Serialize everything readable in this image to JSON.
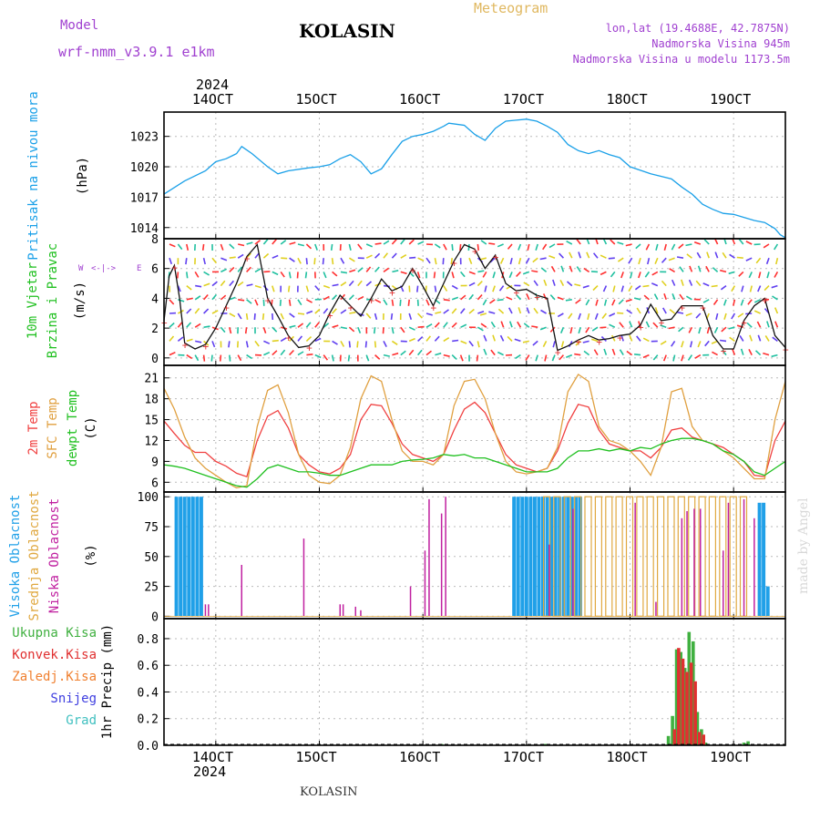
{
  "header": {
    "model_label": "Model",
    "model_name": "wrf-nmm_v3.9.1 e1km",
    "station": "KOLASIN",
    "meteogram": "Meteogram",
    "coords": "lon,lat (19.4688E, 42.7875N)",
    "elevation": "Nadmorska Visina 945m",
    "model_elevation": "Nadmorska Visina u modelu 1173.5m"
  },
  "footer": {
    "station": "KOLASIN",
    "credit": "made by Angel"
  },
  "colors": {
    "pressure": "#1aa0e8",
    "temp2m": "#f04040",
    "sfc": "#e0a040",
    "dewpt": "#20c020",
    "high_cloud": "#20a0e8",
    "mid_cloud": "#e0a840",
    "low_cloud": "#c020a0",
    "precip_total": "#40b040",
    "precip_conv": "#e03030",
    "precip_frozen": "#f08030",
    "snow": "#4040e0",
    "graupel": "#40c0c0"
  },
  "chart_data": [
    {
      "type": "line",
      "panel": "pressure",
      "ylabel_lines": [
        "Pritisak na nivou mora",
        "(hPa)"
      ],
      "yticks": [
        1014,
        1017,
        1020,
        1023
      ],
      "ylim": [
        1012.9,
        1025.4
      ],
      "xlim_days": [
        13.5,
        19.5
      ],
      "top_year": "2024",
      "top_xticks": [
        "14OCT",
        "15OCT",
        "16OCT",
        "17OCT",
        "18OCT",
        "19OCT"
      ],
      "x": [
        13.5,
        13.7,
        13.9,
        14.0,
        14.1,
        14.2,
        14.25,
        14.35,
        14.5,
        14.6,
        14.7,
        14.9,
        15.0,
        15.1,
        15.2,
        15.3,
        15.4,
        15.5,
        15.6,
        15.7,
        15.8,
        15.9,
        16.0,
        16.1,
        16.2,
        16.25,
        16.4,
        16.5,
        16.6,
        16.7,
        16.8,
        16.9,
        17.0,
        17.1,
        17.2,
        17.3,
        17.4,
        17.5,
        17.6,
        17.7,
        17.8,
        17.9,
        18.0,
        18.2,
        18.4,
        18.5,
        18.6,
        18.7,
        18.8,
        18.9,
        19.0,
        19.1,
        19.2,
        19.3,
        19.4,
        19.45,
        19.5
      ],
      "series": [
        {
          "values": [
            1017.3,
            1018.6,
            1019.6,
            1020.5,
            1020.8,
            1021.3,
            1022.0,
            1021.3,
            1020.0,
            1019.3,
            1019.6,
            1019.9,
            1020.0,
            1020.2,
            1020.8,
            1021.2,
            1020.5,
            1019.3,
            1019.8,
            1021.2,
            1022.5,
            1023.0,
            1023.2,
            1023.5,
            1024.0,
            1024.3,
            1024.1,
            1023.2,
            1022.6,
            1023.8,
            1024.5,
            1024.6,
            1024.7,
            1024.5,
            1024.0,
            1023.4,
            1022.2,
            1021.6,
            1021.3,
            1021.6,
            1021.2,
            1020.9,
            1020.0,
            1019.3,
            1018.8,
            1018.0,
            1017.3,
            1016.3,
            1015.8,
            1015.4,
            1015.3,
            1015.0,
            1014.7,
            1014.5,
            1013.9,
            1013.3,
            1013.0
          ]
        }
      ]
    },
    {
      "type": "line",
      "panel": "wind",
      "ylabel_lines": [
        "10m Vjetar",
        "Brzina i Pravac",
        "(m/s)"
      ],
      "yticks": [
        0,
        2,
        4,
        6,
        8
      ],
      "ylim": [
        -0.5,
        8.0
      ],
      "compass": "N S W E",
      "x": [
        13.5,
        13.55,
        13.6,
        13.65,
        13.7,
        13.8,
        13.9,
        14.0,
        14.1,
        14.2,
        14.3,
        14.4,
        14.5,
        14.6,
        14.7,
        14.8,
        14.9,
        15.0,
        15.1,
        15.2,
        15.3,
        15.4,
        15.5,
        15.6,
        15.7,
        15.8,
        15.9,
        16.0,
        16.1,
        16.2,
        16.3,
        16.4,
        16.5,
        16.6,
        16.7,
        16.8,
        16.9,
        17.0,
        17.1,
        17.2,
        17.3,
        17.4,
        17.5,
        17.6,
        17.7,
        17.8,
        17.9,
        18.0,
        18.1,
        18.2,
        18.3,
        18.4,
        18.5,
        18.6,
        18.7,
        18.8,
        18.9,
        19.0,
        19.1,
        19.2,
        19.3,
        19.4,
        19.5
      ],
      "series": [
        {
          "name": "",
          "values": [
            2.5,
            5.5,
            6.2,
            4.0,
            1.0,
            0.6,
            0.9,
            2.0,
            3.5,
            5.0,
            6.8,
            7.6,
            4.0,
            2.8,
            1.5,
            0.7,
            0.8,
            1.5,
            3.0,
            4.2,
            3.5,
            2.8,
            4.0,
            5.3,
            4.5,
            4.8,
            6.0,
            4.8,
            3.5,
            5.0,
            6.5,
            7.6,
            7.3,
            6.0,
            6.9,
            5.0,
            4.5,
            4.6,
            4.2,
            4.0,
            0.5,
            0.8,
            1.2,
            1.5,
            1.2,
            1.3,
            1.5,
            1.6,
            2.2,
            3.6,
            2.5,
            2.6,
            3.5,
            3.5,
            3.5,
            1.5,
            0.6,
            0.6,
            2.5,
            3.5,
            4.0,
            1.5,
            0.7
          ]
        }
      ]
    },
    {
      "type": "line",
      "panel": "temperature",
      "ylabel_lines": [
        "2m Temp",
        "SFC Temp",
        "dewpt Temp",
        "(C)"
      ],
      "yticks": [
        6,
        9,
        12,
        15,
        18,
        21
      ],
      "ylim": [
        4.6,
        22.8
      ],
      "x": [
        13.5,
        13.6,
        13.7,
        13.8,
        13.9,
        14.0,
        14.1,
        14.2,
        14.3,
        14.4,
        14.5,
        14.6,
        14.7,
        14.8,
        14.9,
        15.0,
        15.1,
        15.2,
        15.3,
        15.4,
        15.5,
        15.6,
        15.7,
        15.8,
        15.9,
        16.0,
        16.1,
        16.2,
        16.3,
        16.4,
        16.5,
        16.6,
        16.7,
        16.8,
        16.9,
        17.0,
        17.1,
        17.2,
        17.3,
        17.4,
        17.5,
        17.6,
        17.7,
        17.8,
        17.9,
        18.0,
        18.1,
        18.2,
        18.3,
        18.4,
        18.5,
        18.6,
        18.7,
        18.8,
        18.9,
        19.0,
        19.1,
        19.2,
        19.3,
        19.4,
        19.5
      ],
      "series": [
        {
          "name": "2m Temp",
          "values": [
            14.8,
            13.0,
            11.3,
            10.3,
            10.3,
            9.0,
            8.3,
            7.3,
            6.8,
            12.0,
            15.5,
            16.3,
            13.8,
            10.0,
            8.5,
            7.5,
            7.2,
            8.0,
            10.0,
            15.0,
            17.2,
            17.0,
            14.5,
            11.5,
            10.0,
            9.5,
            9.0,
            10.0,
            13.5,
            16.5,
            17.5,
            16.0,
            13.0,
            10.0,
            8.5,
            8.0,
            7.5,
            8.0,
            10.5,
            14.5,
            17.2,
            16.8,
            13.5,
            11.5,
            11.0,
            10.5,
            10.5,
            9.5,
            11.0,
            13.5,
            13.8,
            12.5,
            12.0,
            11.5,
            11.0,
            10.0,
            9.0,
            7.0,
            6.8,
            12.0,
            14.8
          ]
        },
        {
          "name": "SFC Temp",
          "values": [
            19.5,
            16.5,
            12.5,
            9.5,
            8.0,
            7.0,
            6.0,
            5.2,
            5.5,
            14.0,
            19.2,
            20.0,
            16.0,
            10.0,
            7.0,
            6.0,
            5.8,
            7.0,
            11.0,
            18.0,
            21.3,
            20.5,
            15.0,
            10.5,
            9.0,
            9.0,
            8.5,
            10.0,
            17.0,
            20.5,
            20.8,
            18.0,
            13.0,
            9.0,
            7.5,
            7.2,
            7.5,
            8.0,
            11.0,
            19.0,
            21.5,
            20.5,
            14.0,
            12.0,
            11.5,
            10.5,
            9.0,
            7.0,
            11.0,
            19.0,
            19.5,
            14.0,
            12.0,
            11.5,
            10.5,
            9.5,
            8.0,
            6.5,
            6.5,
            15.0,
            20.5
          ]
        },
        {
          "name": "dewpt Temp",
          "values": [
            8.5,
            8.3,
            8.0,
            7.5,
            7.0,
            6.5,
            6.0,
            5.5,
            5.3,
            6.5,
            8.0,
            8.5,
            8.0,
            7.5,
            7.5,
            7.3,
            7.0,
            7.0,
            7.5,
            8.0,
            8.5,
            8.5,
            8.5,
            9.0,
            9.2,
            9.3,
            9.5,
            10.0,
            9.8,
            10.0,
            9.5,
            9.5,
            9.0,
            8.5,
            8.0,
            7.5,
            7.5,
            7.5,
            8.0,
            9.5,
            10.5,
            10.5,
            10.8,
            10.5,
            10.8,
            10.5,
            11.0,
            10.8,
            11.5,
            12.0,
            12.3,
            12.3,
            12.0,
            11.5,
            10.5,
            10.0,
            9.0,
            7.5,
            7.0,
            8.0,
            9.0
          ]
        }
      ]
    },
    {
      "type": "bar",
      "panel": "clouds",
      "ylabel_lines": [
        "Visoka Oblacnost",
        "Srednja Oblacnost",
        "Niska Oblacnost",
        "(%)"
      ],
      "yticks": [
        0,
        25,
        50,
        75,
        100
      ],
      "ylim": [
        -2,
        104
      ],
      "series": [
        {
          "name": "Visoka Oblacnost",
          "x": [
            13.62,
            13.66,
            13.7,
            13.74,
            13.78,
            13.82,
            13.86,
            16.88,
            16.92,
            16.96,
            17.0,
            17.04,
            17.08,
            17.12,
            17.16,
            17.2,
            17.24,
            17.28,
            17.32,
            17.36,
            17.4,
            17.44,
            17.48,
            17.52,
            19.25,
            19.29,
            19.33
          ],
          "values": [
            100,
            100,
            100,
            100,
            100,
            100,
            100,
            100,
            100,
            100,
            100,
            100,
            100,
            100,
            100,
            100,
            100,
            100,
            100,
            100,
            100,
            100,
            100,
            100,
            95,
            95,
            25
          ]
        },
        {
          "name": "Srednja Oblacnost",
          "x": [
            17.2,
            17.3,
            17.4,
            17.5,
            17.6,
            17.7,
            17.8,
            17.9,
            18.0,
            18.1,
            18.2,
            18.3,
            18.4,
            18.5,
            18.6,
            18.7,
            18.8,
            18.9,
            19.0,
            19.1
          ],
          "values": [
            100,
            100,
            100,
            100,
            100,
            100,
            100,
            100,
            100,
            100,
            100,
            100,
            100,
            100,
            100,
            100,
            100,
            100,
            100,
            100
          ]
        },
        {
          "name": "Niska Oblacnost",
          "x": [
            13.9,
            13.93,
            14.25,
            14.85,
            15.2,
            15.23,
            15.35,
            15.4,
            15.88,
            16.02,
            16.06,
            16.18,
            16.22,
            17.22,
            17.45,
            18.05,
            18.25,
            18.5,
            18.55,
            18.62,
            18.68,
            18.9,
            18.95,
            19.1,
            19.2
          ],
          "values": [
            10,
            10,
            43,
            65,
            10,
            10,
            8,
            5,
            25,
            55,
            98,
            86,
            100,
            60,
            90,
            95,
            12,
            82,
            88,
            90,
            90,
            55,
            95,
            98,
            82
          ]
        }
      ]
    },
    {
      "type": "bar",
      "panel": "precipitation",
      "ylabel_lines": [
        "Ukupna Kisa",
        "Konvek.Kisa",
        "Zaledj.Kisa",
        "Snijeg",
        "Grad",
        "1hr Precip (mm)"
      ],
      "yticks": [
        0.0,
        0.2,
        0.4,
        0.6,
        0.8
      ],
      "ylim": [
        0,
        0.95
      ],
      "bottom_xticks": [
        "14OCT",
        "15OCT",
        "16OCT",
        "17OCT",
        "18OCT",
        "19OCT"
      ],
      "bottom_year": "2024",
      "series": [
        {
          "name": "Ukupna Kisa",
          "x": [
            16.18,
            17.18,
            18.37,
            18.41,
            18.45,
            18.49,
            18.53,
            18.57,
            18.61,
            18.65,
            18.69,
            18.73,
            19.1,
            19.14
          ],
          "values": [
            0.01,
            0.01,
            0.07,
            0.22,
            0.72,
            0.7,
            0.58,
            0.85,
            0.78,
            0.25,
            0.12,
            0.02,
            0.02,
            0.03
          ]
        },
        {
          "name": "Konvek.Kisa",
          "x": [
            18.43,
            18.47,
            18.51,
            18.55,
            18.59,
            18.63,
            18.67,
            18.71
          ],
          "values": [
            0.12,
            0.73,
            0.65,
            0.55,
            0.62,
            0.48,
            0.1,
            0.08
          ]
        }
      ]
    }
  ]
}
